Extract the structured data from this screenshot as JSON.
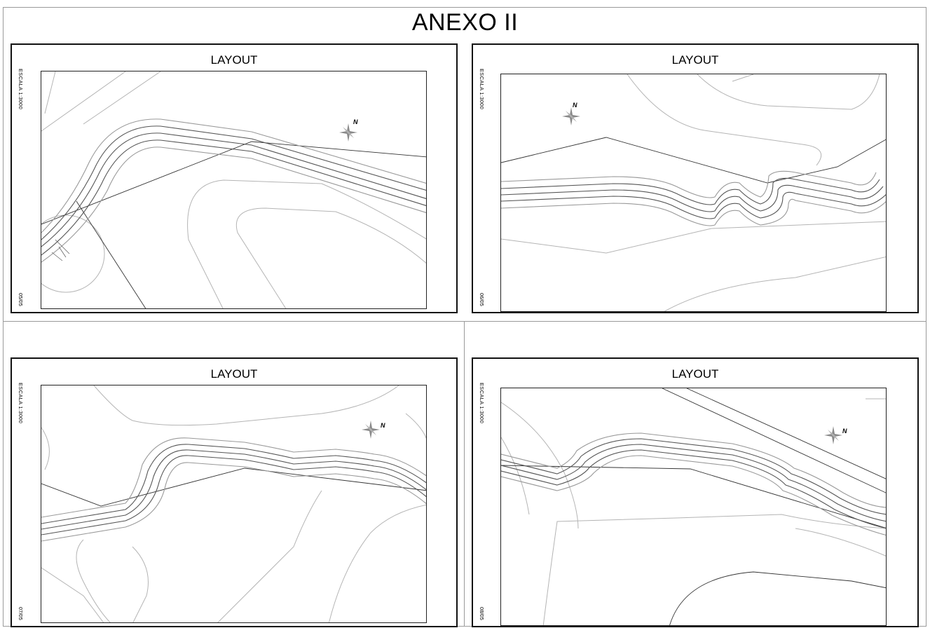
{
  "document": {
    "title": "ANEXO II"
  },
  "panels": [
    {
      "title": "LAYOUT",
      "scale": "ESCALA 1:3000",
      "sheet": "05/05",
      "north": "N"
    },
    {
      "title": "LAYOUT",
      "scale": "ESCALA 1:3000",
      "sheet": "06/05",
      "north": "N"
    },
    {
      "title": "LAYOUT",
      "scale": "ESCALA 1:3000",
      "sheet": "07/05",
      "north": "N"
    },
    {
      "title": "LAYOUT",
      "scale": "ESCALA 1:3000",
      "sheet": "08/05",
      "north": "N"
    }
  ],
  "colors": {
    "contour": "#b4b4b4",
    "road": "#555555",
    "line": "#333333",
    "compass": "#8a8a8a"
  }
}
